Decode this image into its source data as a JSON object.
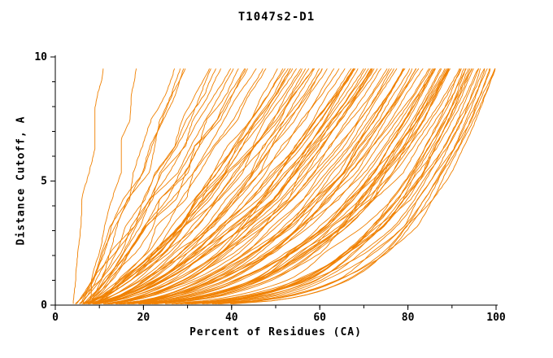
{
  "chart_data": {
    "type": "line",
    "title": "T1047s2-D1",
    "xlabel": "Percent of Residues (CA)",
    "ylabel": "Distance Cutoff, A",
    "xlim": [
      0,
      100
    ],
    "ylim": [
      0,
      10
    ],
    "x_ticks": [
      0,
      20,
      40,
      60,
      80,
      100
    ],
    "x_minor_step": 10,
    "y_ticks": [
      0,
      5,
      10
    ],
    "y_minor_step": 1,
    "line_color": "#f08000",
    "axis_color": "#000000",
    "grid": false,
    "legend": null,
    "description": "CASP-style per-model cumulative accuracy plot: ~110 monotonically rising orange curves, each giving the distance cutoff (0-10 A) needed to cover a given percent of CA residues. Curves start near x=4-8 at y=0; the fastest models reach the 9.6 A top near x=13-25 while a dense bundle of curves stays low and climbs steeply near x=85-100.",
    "curve_generator": {
      "count": 112,
      "seed": 7,
      "y_start": 0.05,
      "y_max": 9.62,
      "y_step": 0.12,
      "x_start_min": 3.8,
      "x_start_max": 8.0,
      "x_end_min": 13,
      "x_end_max": 100,
      "end_cluster_exponent": 0.5,
      "shape_p_left": 1.1,
      "shape_p_right": 0.22,
      "wiggle_amp": 1.6,
      "fine_noise": 0.18
    }
  }
}
